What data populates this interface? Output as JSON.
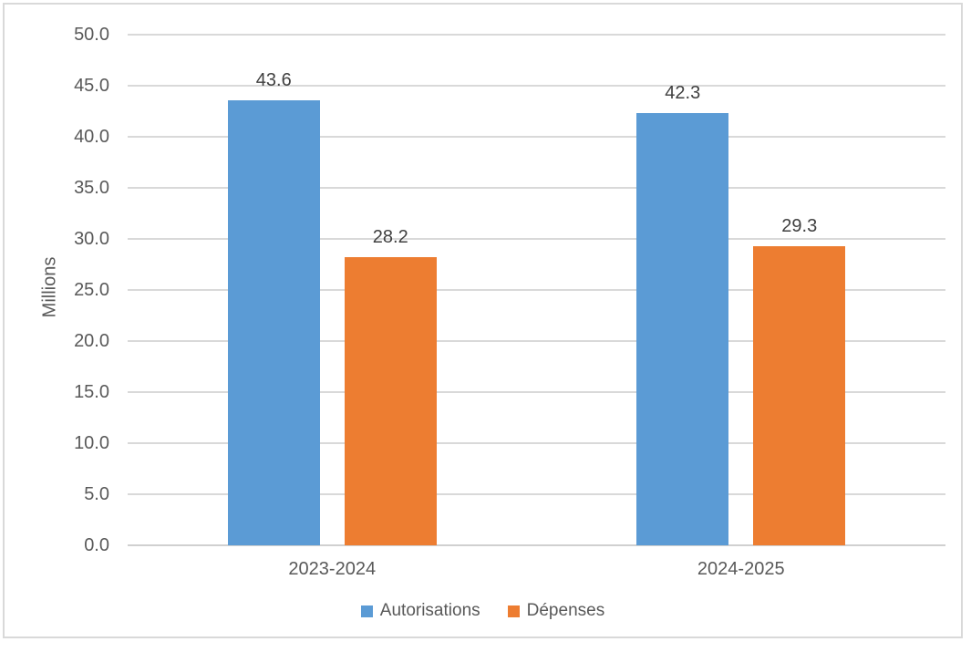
{
  "chart_data": {
    "type": "bar",
    "title": "",
    "categories": [
      "2023-2024",
      "2024-2025"
    ],
    "series": [
      {
        "name": "Autorisations",
        "color": "#5B9BD5",
        "values": [
          43.6,
          42.3
        ]
      },
      {
        "name": "Dépenses",
        "color": "#ED7D31",
        "values": [
          28.2,
          29.3
        ]
      }
    ],
    "data_labels": [
      [
        "43.6",
        "42.3"
      ],
      [
        "28.2",
        "29.3"
      ]
    ],
    "xlabel": "",
    "ylabel": "Millions",
    "ylim": [
      0,
      50
    ],
    "ytick_step": 5,
    "ytick_labels": [
      "0.0",
      "5.0",
      "10.0",
      "15.0",
      "20.0",
      "25.0",
      "30.0",
      "35.0",
      "40.0",
      "45.0",
      "50.0"
    ],
    "grid": true,
    "legend_position": "bottom",
    "colors": {
      "text": "#595959",
      "data_label_text": "#404040",
      "gridline": "#d9d9d9",
      "frame_border": "#d9d9d9",
      "background": "#ffffff"
    }
  }
}
